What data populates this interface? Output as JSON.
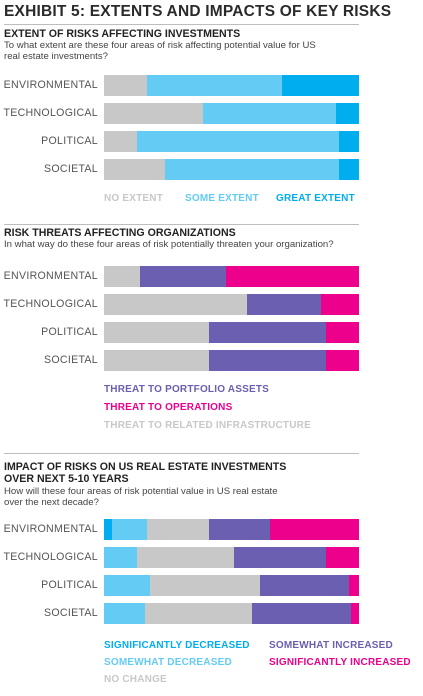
{
  "title": "EXHIBIT 5: EXTENTS AND IMPACTS OF KEY RISKS",
  "colors": {
    "gray": "#c8c8c8",
    "light_blue": "#63cbf4",
    "blue": "#00aeef",
    "purple": "#6a5fb0",
    "magenta": "#ec008c",
    "label_gray": "#555555"
  },
  "chart_data": [
    {
      "type": "bar",
      "orientation": "horizontal",
      "stacked": true,
      "title": "EXTENT OF RISKS AFFECTING INVESTMENTS",
      "subtitle": "To what extent are these four areas of risk affecting potential value for US real estate investments?",
      "categories": [
        "ENVIRONMENTAL",
        "TECHNOLOGICAL",
        "POLITICAL",
        "SOCIETAL"
      ],
      "series": [
        {
          "name": "NO EXTENT",
          "color": "#c8c8c8",
          "values": [
            17,
            39,
            13,
            24
          ]
        },
        {
          "name": "SOME EXTENT",
          "color": "#63cbf4",
          "values": [
            53,
            52,
            79,
            68
          ]
        },
        {
          "name": "GREAT EXTENT",
          "color": "#00aeef",
          "values": [
            30,
            9,
            8,
            8
          ]
        }
      ],
      "xlim": [
        0,
        100
      ]
    },
    {
      "type": "bar",
      "orientation": "horizontal",
      "stacked": true,
      "title": "RISK THREATS AFFECTING ORGANIZATIONS",
      "subtitle": "In what way do these four areas of risk potentially threaten your organization?",
      "categories": [
        "ENVIRONMENTAL",
        "TECHNOLOGICAL",
        "POLITICAL",
        "SOCIETAL"
      ],
      "series": [
        {
          "name": "THREAT TO RELATED INFRASTRUCTURE",
          "color": "#c8c8c8",
          "values": [
            14,
            56,
            41,
            41
          ]
        },
        {
          "name": "THREAT TO PORTFOLIO ASSETS",
          "color": "#6a5fb0",
          "values": [
            34,
            29,
            46,
            46
          ]
        },
        {
          "name": "THREAT TO OPERATIONS",
          "color": "#ec008c",
          "values": [
            52,
            15,
            13,
            13
          ]
        }
      ],
      "legend_order": [
        "THREAT TO PORTFOLIO ASSETS",
        "THREAT TO OPERATIONS",
        "THREAT TO RELATED INFRASTRUCTURE"
      ],
      "xlim": [
        0,
        100
      ]
    },
    {
      "type": "bar",
      "orientation": "horizontal",
      "stacked": true,
      "title": "IMPACT OF RISKS ON US REAL ESTATE INVESTMENTS OVER NEXT 5-10 YEARS",
      "subtitle": "How will these four areas of risk potential value in US real estate over the next decade?",
      "categories": [
        "ENVIRONMENTAL",
        "TECHNOLOGICAL",
        "POLITICAL",
        "SOCIETAL"
      ],
      "series": [
        {
          "name": "SIGNIFICANTLY DECREASED",
          "color": "#00aeef",
          "values": [
            3,
            0,
            0,
            0
          ]
        },
        {
          "name": "SOMEWHAT DECREASED",
          "color": "#63cbf4",
          "values": [
            14,
            13,
            18,
            16
          ]
        },
        {
          "name": "NO CHANGE",
          "color": "#c8c8c8",
          "values": [
            24,
            38,
            43,
            42
          ]
        },
        {
          "name": "SOMEWHAT INCREASED",
          "color": "#6a5fb0",
          "values": [
            24,
            36,
            35,
            39
          ]
        },
        {
          "name": "SIGNIFICANTLY INCREASED",
          "color": "#ec008c",
          "values": [
            35,
            13,
            4,
            3
          ]
        }
      ],
      "legend_order": [
        "SIGNIFICANTLY DECREASED",
        "SOMEWHAT INCREASED",
        "SOMEWHAT DECREASED",
        "SIGNIFICANTLY INCREASED",
        "NO CHANGE"
      ],
      "xlim": [
        0,
        100
      ]
    }
  ]
}
